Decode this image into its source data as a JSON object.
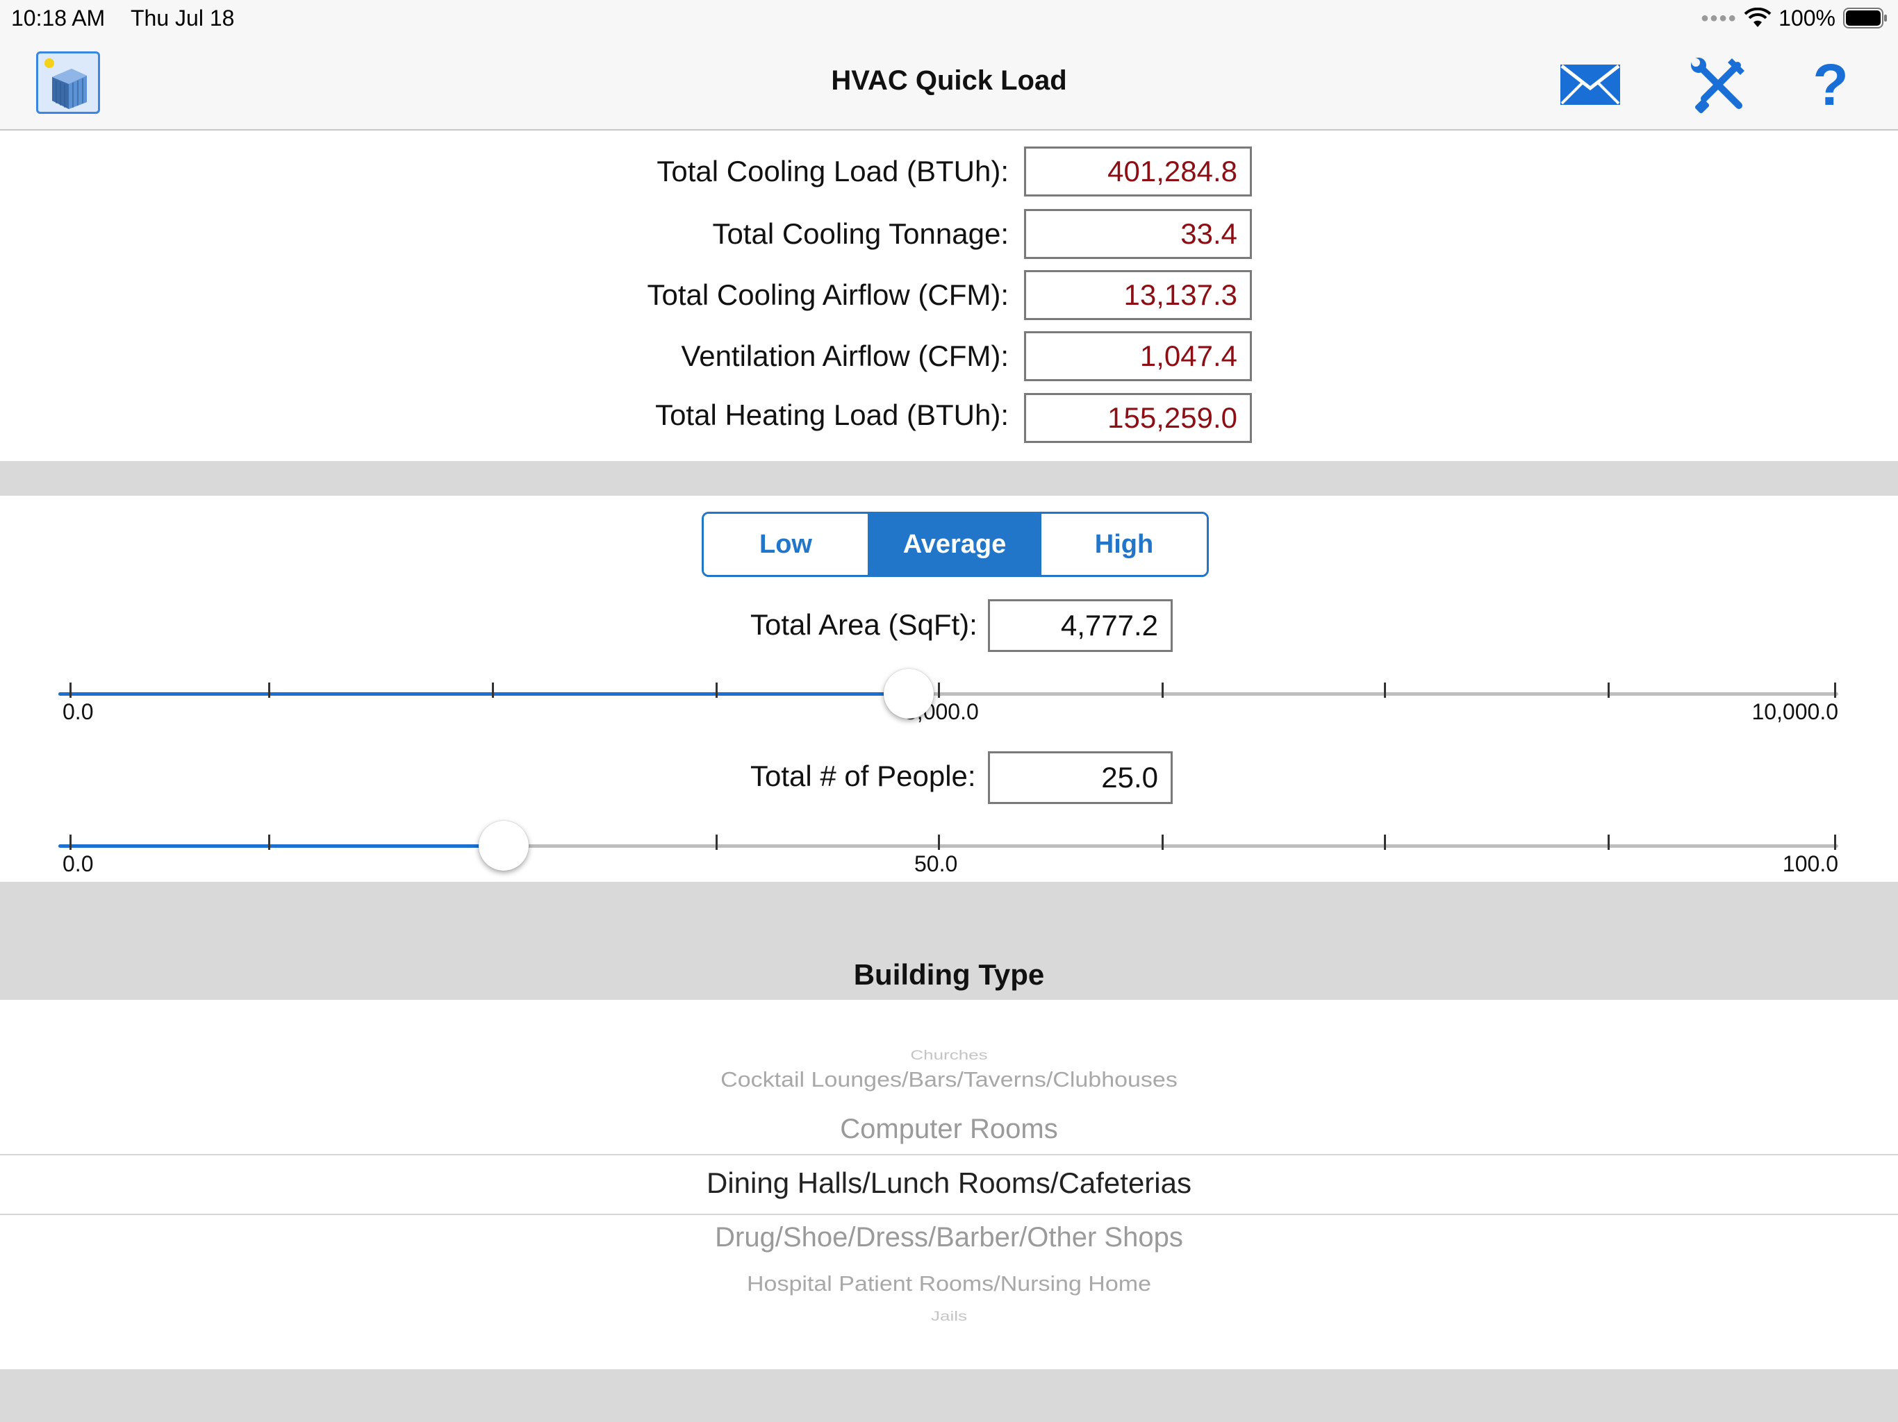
{
  "status_bar": {
    "time": "10:18 AM",
    "date": "Thu Jul 18",
    "battery": "100%"
  },
  "nav": {
    "title": "HVAC Quick Load",
    "app_icon": "building-icon",
    "email_icon": "envelope-icon",
    "settings_icon": "tools-icon",
    "help_icon": "question-icon",
    "help_label": "?"
  },
  "results": [
    {
      "label": "Total Cooling Load (BTUh):",
      "value": "401,284.8"
    },
    {
      "label": "Total Cooling Tonnage:",
      "value": "33.4"
    },
    {
      "label": "Total Cooling Airflow (CFM):",
      "value": "13,137.3"
    },
    {
      "label": "Ventilation Airflow (CFM):",
      "value": "1,047.4"
    },
    {
      "label": "Total Heating Load (BTUh):",
      "value": "155,259.0"
    }
  ],
  "load_level": {
    "options": [
      "Low",
      "Average",
      "High"
    ],
    "selected": "Average"
  },
  "area": {
    "label": "Total Area (SqFt):",
    "value": "4,777.2",
    "slider": {
      "min_label": "0.0",
      "mid_label": "5,000.0",
      "max_label": "10,000.0",
      "fraction": 0.4777
    }
  },
  "people": {
    "label": "Total # of People:",
    "value": "25.0",
    "slider": {
      "min_label": "0.0",
      "mid_label": "50.0",
      "max_label": "100.0",
      "fraction": 0.25
    }
  },
  "building_type": {
    "title": "Building Type",
    "items": [
      "Churches",
      "Cocktail Lounges/Bars/Taverns/Clubhouses",
      "Computer Rooms",
      "Dining Halls/Lunch Rooms/Cafeterias",
      "Drug/Shoe/Dress/Barber/Other Shops",
      "Hospital Patient Rooms/Nursing Home",
      "Jails"
    ],
    "selected": "Dining Halls/Lunch Rooms/Cafeterias"
  },
  "colors": {
    "accent": "#2276c9",
    "result_text": "#8b0f14",
    "band": "#d9d9d9"
  }
}
